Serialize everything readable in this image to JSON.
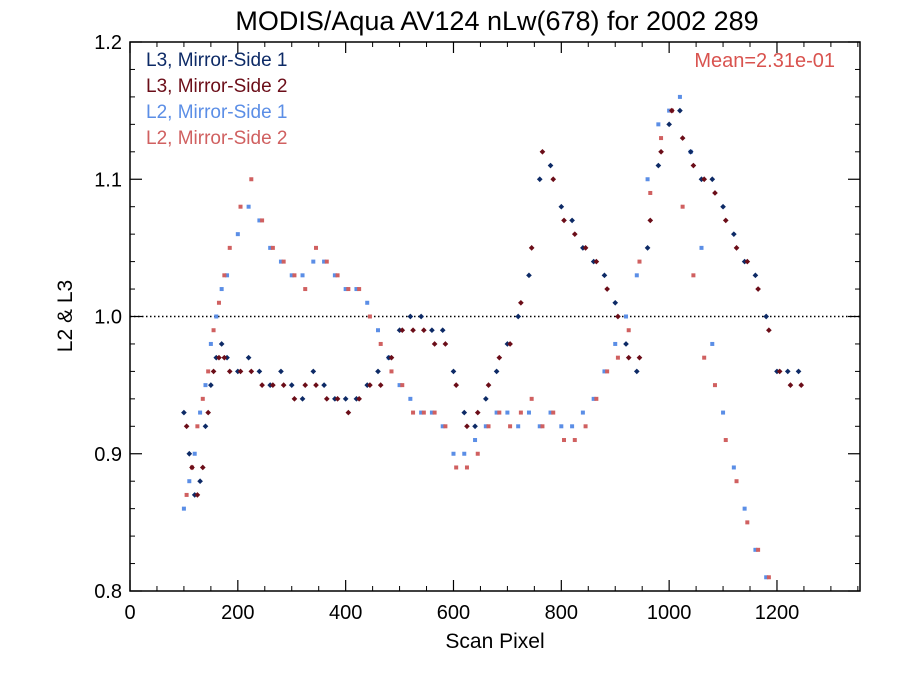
{
  "chart_data": {
    "type": "scatter",
    "title": "MODIS/Aqua AV124 nLw(678) for 2002 289",
    "xlabel": "Scan Pixel",
    "ylabel": "L2 & L3",
    "xlim": [
      0,
      1354
    ],
    "ylim": [
      0.8,
      1.2
    ],
    "xticks": [
      "0",
      "200",
      "400",
      "600",
      "800",
      "1000",
      "1200"
    ],
    "yticks": [
      "0.8",
      "0.9",
      "1.0",
      "1.1",
      "1.2"
    ],
    "reference_line": 1.0,
    "annotation": "Mean=2.31e-01",
    "annotation_color": "#d9534f",
    "legend_placement": "top-left",
    "series": [
      {
        "name": "L3, Mirror-Side 1",
        "color": "#0d2a66",
        "x": [
          100,
          110,
          120,
          130,
          140,
          150,
          160,
          170,
          180,
          200,
          220,
          240,
          260,
          280,
          300,
          320,
          340,
          360,
          380,
          400,
          420,
          440,
          460,
          480,
          500,
          520,
          540,
          560,
          580,
          600,
          620,
          640,
          660,
          680,
          700,
          720,
          740,
          760,
          780,
          800,
          820,
          840,
          860,
          880,
          900,
          920,
          940,
          960,
          980,
          1000,
          1020,
          1040,
          1060,
          1080,
          1100,
          1120,
          1140,
          1160,
          1180,
          1200,
          1220,
          1240
        ],
        "y": [
          0.93,
          0.9,
          0.87,
          0.88,
          0.92,
          0.95,
          0.97,
          0.98,
          0.97,
          0.96,
          0.97,
          0.96,
          0.95,
          0.96,
          0.95,
          0.94,
          0.96,
          0.95,
          0.94,
          0.94,
          0.94,
          0.95,
          0.96,
          0.97,
          0.99,
          1.0,
          1.0,
          0.99,
          0.99,
          0.96,
          0.93,
          0.92,
          0.94,
          0.96,
          0.98,
          1.0,
          1.03,
          1.1,
          1.11,
          1.08,
          1.07,
          1.05,
          1.04,
          1.03,
          1.01,
          0.98,
          0.96,
          1.05,
          1.11,
          1.14,
          1.15,
          1.12,
          1.1,
          1.1,
          1.08,
          1.06,
          1.04,
          1.03,
          1.0,
          0.96,
          0.96,
          0.96
        ]
      },
      {
        "name": "L3, Mirror-Side 2",
        "color": "#6b0d18",
        "x": [
          105,
          115,
          125,
          135,
          145,
          155,
          165,
          175,
          185,
          205,
          225,
          245,
          265,
          285,
          305,
          325,
          345,
          365,
          385,
          405,
          425,
          445,
          465,
          485,
          505,
          525,
          545,
          565,
          585,
          605,
          625,
          645,
          665,
          685,
          705,
          725,
          745,
          765,
          785,
          805,
          825,
          845,
          865,
          885,
          905,
          925,
          945,
          965,
          985,
          1005,
          1025,
          1045,
          1065,
          1085,
          1105,
          1125,
          1145,
          1165,
          1185,
          1205,
          1225,
          1245
        ],
        "y": [
          0.92,
          0.89,
          0.87,
          0.89,
          0.93,
          0.96,
          0.97,
          0.97,
          0.96,
          0.96,
          0.96,
          0.95,
          0.95,
          0.95,
          0.94,
          0.95,
          0.95,
          0.94,
          0.94,
          0.93,
          0.94,
          0.95,
          0.95,
          0.97,
          0.99,
          0.99,
          0.99,
          0.98,
          0.98,
          0.95,
          0.92,
          0.93,
          0.95,
          0.97,
          0.98,
          1.01,
          1.05,
          1.12,
          1.1,
          1.07,
          1.06,
          1.05,
          1.04,
          1.02,
          1.0,
          0.97,
          0.97,
          1.07,
          1.12,
          1.15,
          1.13,
          1.11,
          1.1,
          1.09,
          1.07,
          1.05,
          1.04,
          1.02,
          0.99,
          0.96,
          0.95,
          0.95
        ]
      },
      {
        "name": "L2, Mirror-Side 1",
        "color": "#5b8ee6",
        "x": [
          100,
          110,
          120,
          130,
          140,
          150,
          160,
          170,
          180,
          200,
          220,
          240,
          260,
          280,
          300,
          320,
          340,
          360,
          380,
          400,
          420,
          440,
          460,
          480,
          500,
          520,
          540,
          560,
          580,
          600,
          620,
          640,
          660,
          680,
          700,
          720,
          740,
          760,
          780,
          800,
          820,
          840,
          860,
          880,
          900,
          920,
          940,
          960,
          980,
          1000,
          1020,
          1040,
          1060,
          1080,
          1100,
          1120,
          1140,
          1160,
          1180
        ],
        "y": [
          0.86,
          0.88,
          0.9,
          0.93,
          0.95,
          0.98,
          1.0,
          1.02,
          1.03,
          1.06,
          1.08,
          1.07,
          1.05,
          1.04,
          1.03,
          1.03,
          1.04,
          1.04,
          1.03,
          1.02,
          1.02,
          1.01,
          0.99,
          0.97,
          0.95,
          0.94,
          0.93,
          0.93,
          0.92,
          0.9,
          0.9,
          0.91,
          0.92,
          0.93,
          0.93,
          0.92,
          0.93,
          0.92,
          0.93,
          0.92,
          0.92,
          0.93,
          0.94,
          0.96,
          0.98,
          1.0,
          1.03,
          1.1,
          1.14,
          1.15,
          1.16,
          1.12,
          1.05,
          0.98,
          0.93,
          0.89,
          0.86,
          0.83,
          0.81
        ]
      },
      {
        "name": "L2, Mirror-Side 2",
        "color": "#d06060",
        "x": [
          105,
          115,
          125,
          135,
          145,
          155,
          165,
          175,
          185,
          205,
          225,
          245,
          265,
          285,
          305,
          325,
          345,
          365,
          385,
          405,
          425,
          445,
          465,
          485,
          505,
          525,
          545,
          565,
          585,
          605,
          625,
          645,
          665,
          685,
          705,
          725,
          745,
          765,
          785,
          805,
          825,
          845,
          865,
          885,
          905,
          925,
          945,
          965,
          985,
          1005,
          1025,
          1045,
          1065,
          1085,
          1105,
          1125,
          1145,
          1165,
          1185
        ],
        "y": [
          0.87,
          0.89,
          0.92,
          0.94,
          0.96,
          0.99,
          1.01,
          1.03,
          1.05,
          1.08,
          1.1,
          1.07,
          1.05,
          1.04,
          1.03,
          1.02,
          1.05,
          1.04,
          1.03,
          1.02,
          1.02,
          1.0,
          0.98,
          0.96,
          0.95,
          0.93,
          0.93,
          0.93,
          0.92,
          0.89,
          0.89,
          0.9,
          0.92,
          0.93,
          0.92,
          0.93,
          0.94,
          0.92,
          0.93,
          0.91,
          0.91,
          0.92,
          0.94,
          0.96,
          0.97,
          0.99,
          1.04,
          1.09,
          1.13,
          1.15,
          1.08,
          1.03,
          0.97,
          0.95,
          0.91,
          0.88,
          0.85,
          0.83,
          0.81
        ]
      }
    ]
  }
}
